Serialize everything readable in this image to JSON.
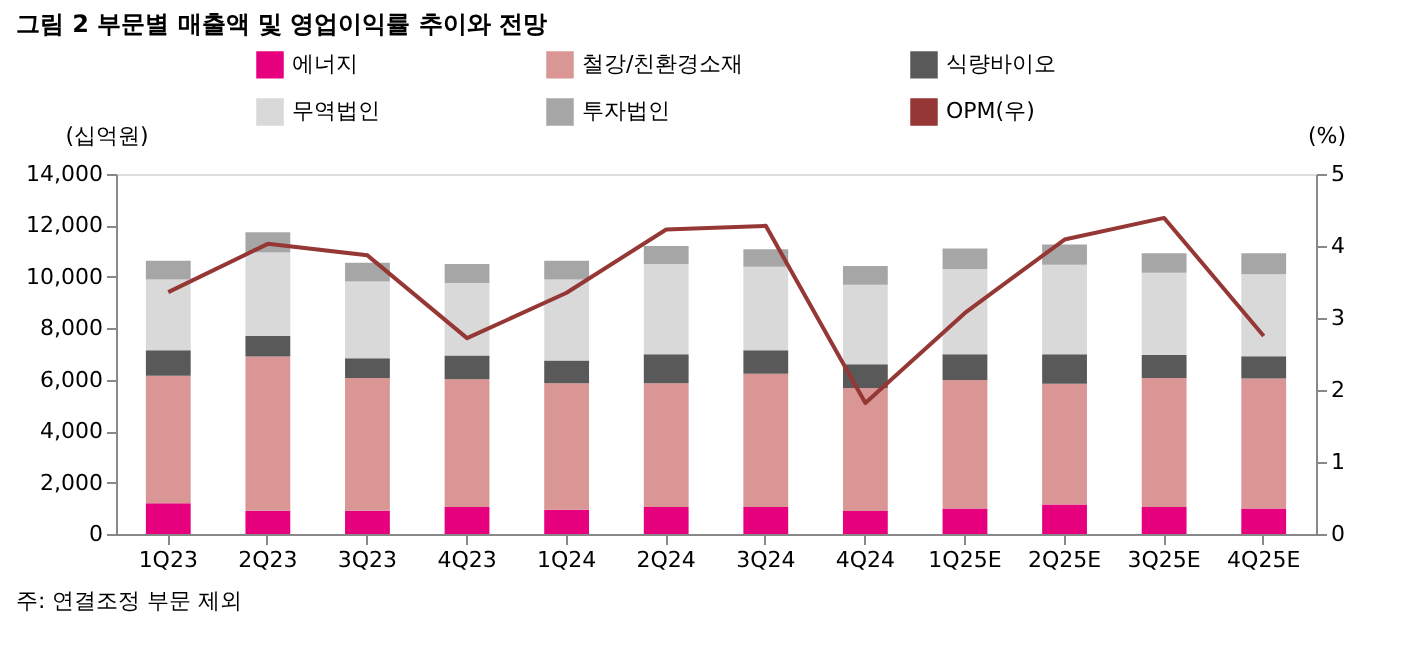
{
  "chart_data": {
    "type": "bar",
    "stacked": true,
    "title": "그림 2  부문별 매출액 및 영업이익률 추이와 전망",
    "ylabel": "(십억원)",
    "y2label": "(%)",
    "annotations": [
      "주: 연결조정 부문 제외"
    ],
    "categories": [
      "1Q23",
      "2Q23",
      "3Q23",
      "4Q23",
      "1Q24",
      "2Q24",
      "3Q24",
      "4Q24",
      "1Q25E",
      "2Q25E",
      "3Q25E",
      "4Q25E"
    ],
    "series": [
      {
        "name": "에너지",
        "color": "#e6007e",
        "values": [
          1200,
          900,
          900,
          1050,
          940,
          1050,
          1050,
          890,
          990,
          1150,
          1050,
          990
        ]
      },
      {
        "name": "철강/친환경소재",
        "color": "#d99694",
        "values": [
          4950,
          6000,
          5170,
          4970,
          4920,
          4810,
          5180,
          4790,
          5000,
          4690,
          5020,
          5060
        ]
      },
      {
        "name": "식량바이오",
        "color": "#595959",
        "values": [
          1000,
          800,
          760,
          920,
          890,
          1130,
          920,
          920,
          1000,
          1150,
          890,
          860
        ]
      },
      {
        "name": "무역법인",
        "color": "#d9d9d9",
        "values": [
          2750,
          3250,
          2990,
          2820,
          3150,
          3510,
          3240,
          3090,
          3320,
          3480,
          3200,
          3190
        ]
      },
      {
        "name": "투자법인",
        "color": "#a6a6a6",
        "values": [
          730,
          780,
          730,
          740,
          730,
          700,
          680,
          730,
          790,
          790,
          760,
          820
        ]
      },
      {
        "name": "OPM(우)",
        "type": "line",
        "axis": "y2",
        "color": "#953735",
        "values": [
          3.36,
          4.03,
          3.87,
          2.72,
          3.35,
          4.23,
          4.28,
          1.82,
          3.07,
          4.09,
          4.39,
          2.75
        ]
      }
    ],
    "ylim": [
      0,
      14000
    ],
    "yticks": [
      0,
      {
        "value": 2000,
        "label": "2,000"
      },
      {
        "value": 4000,
        "label": "4,000"
      },
      {
        "value": 6000,
        "label": "6,000"
      },
      {
        "value": 8000,
        "label": "8,000"
      },
      {
        "value": 10000,
        "label": "10,000"
      },
      {
        "value": 12000,
        "label": "12,000"
      },
      {
        "value": 14000,
        "label": "14,000"
      }
    ],
    "y2lim": [
      0,
      5
    ],
    "y2ticks": [
      0,
      1,
      2,
      3,
      4,
      5
    ],
    "grid": false,
    "legend": "top"
  }
}
